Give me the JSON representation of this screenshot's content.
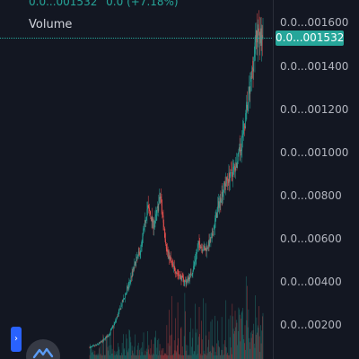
{
  "header": {
    "price": "0.0...001532",
    "change": "0.0 (+7.18%)"
  },
  "volume_label": "Volume",
  "price_tag": "0.0...001532",
  "y_axis_labels": [
    "0.0...001600",
    "0.0...001400",
    "0.0...001200",
    "0.0...001000",
    "0.0...00800",
    "0.0...00600",
    "0.0...00400",
    "0.0...00200"
  ],
  "side_tab_icon": "chevron-right-icon",
  "side_tab_glyph": "›",
  "logo_icon": "tradingview-logo-icon",
  "colors": {
    "up": "#26a69a",
    "down": "#ef5350",
    "background": "#131722",
    "accent": "#2962ff"
  },
  "chart_data": {
    "type": "candlestick",
    "y_axis": "price",
    "ylim": [
      1e-07,
      1.7e-06
    ],
    "close_path": [
      1e-07,
      1.1e-07,
      1.3e-07,
      1.6e-07,
      2.2e-07,
      3e-07,
      3.8e-07,
      4.8e-07,
      5.6e-07,
      7.5e-07,
      6.6e-07,
      8e-07,
      5.5e-07,
      4.7e-07,
      4.3e-07,
      4e-07,
      4.5e-07,
      5.8e-07,
      5.5e-07,
      6e-07,
      7.5e-07,
      8.5e-07,
      9e-07,
      9.5e-07,
      1.1e-06,
      1.3e-06,
      1.55e-06,
      1.532e-06
    ],
    "last_price": 1.532e-06
  }
}
